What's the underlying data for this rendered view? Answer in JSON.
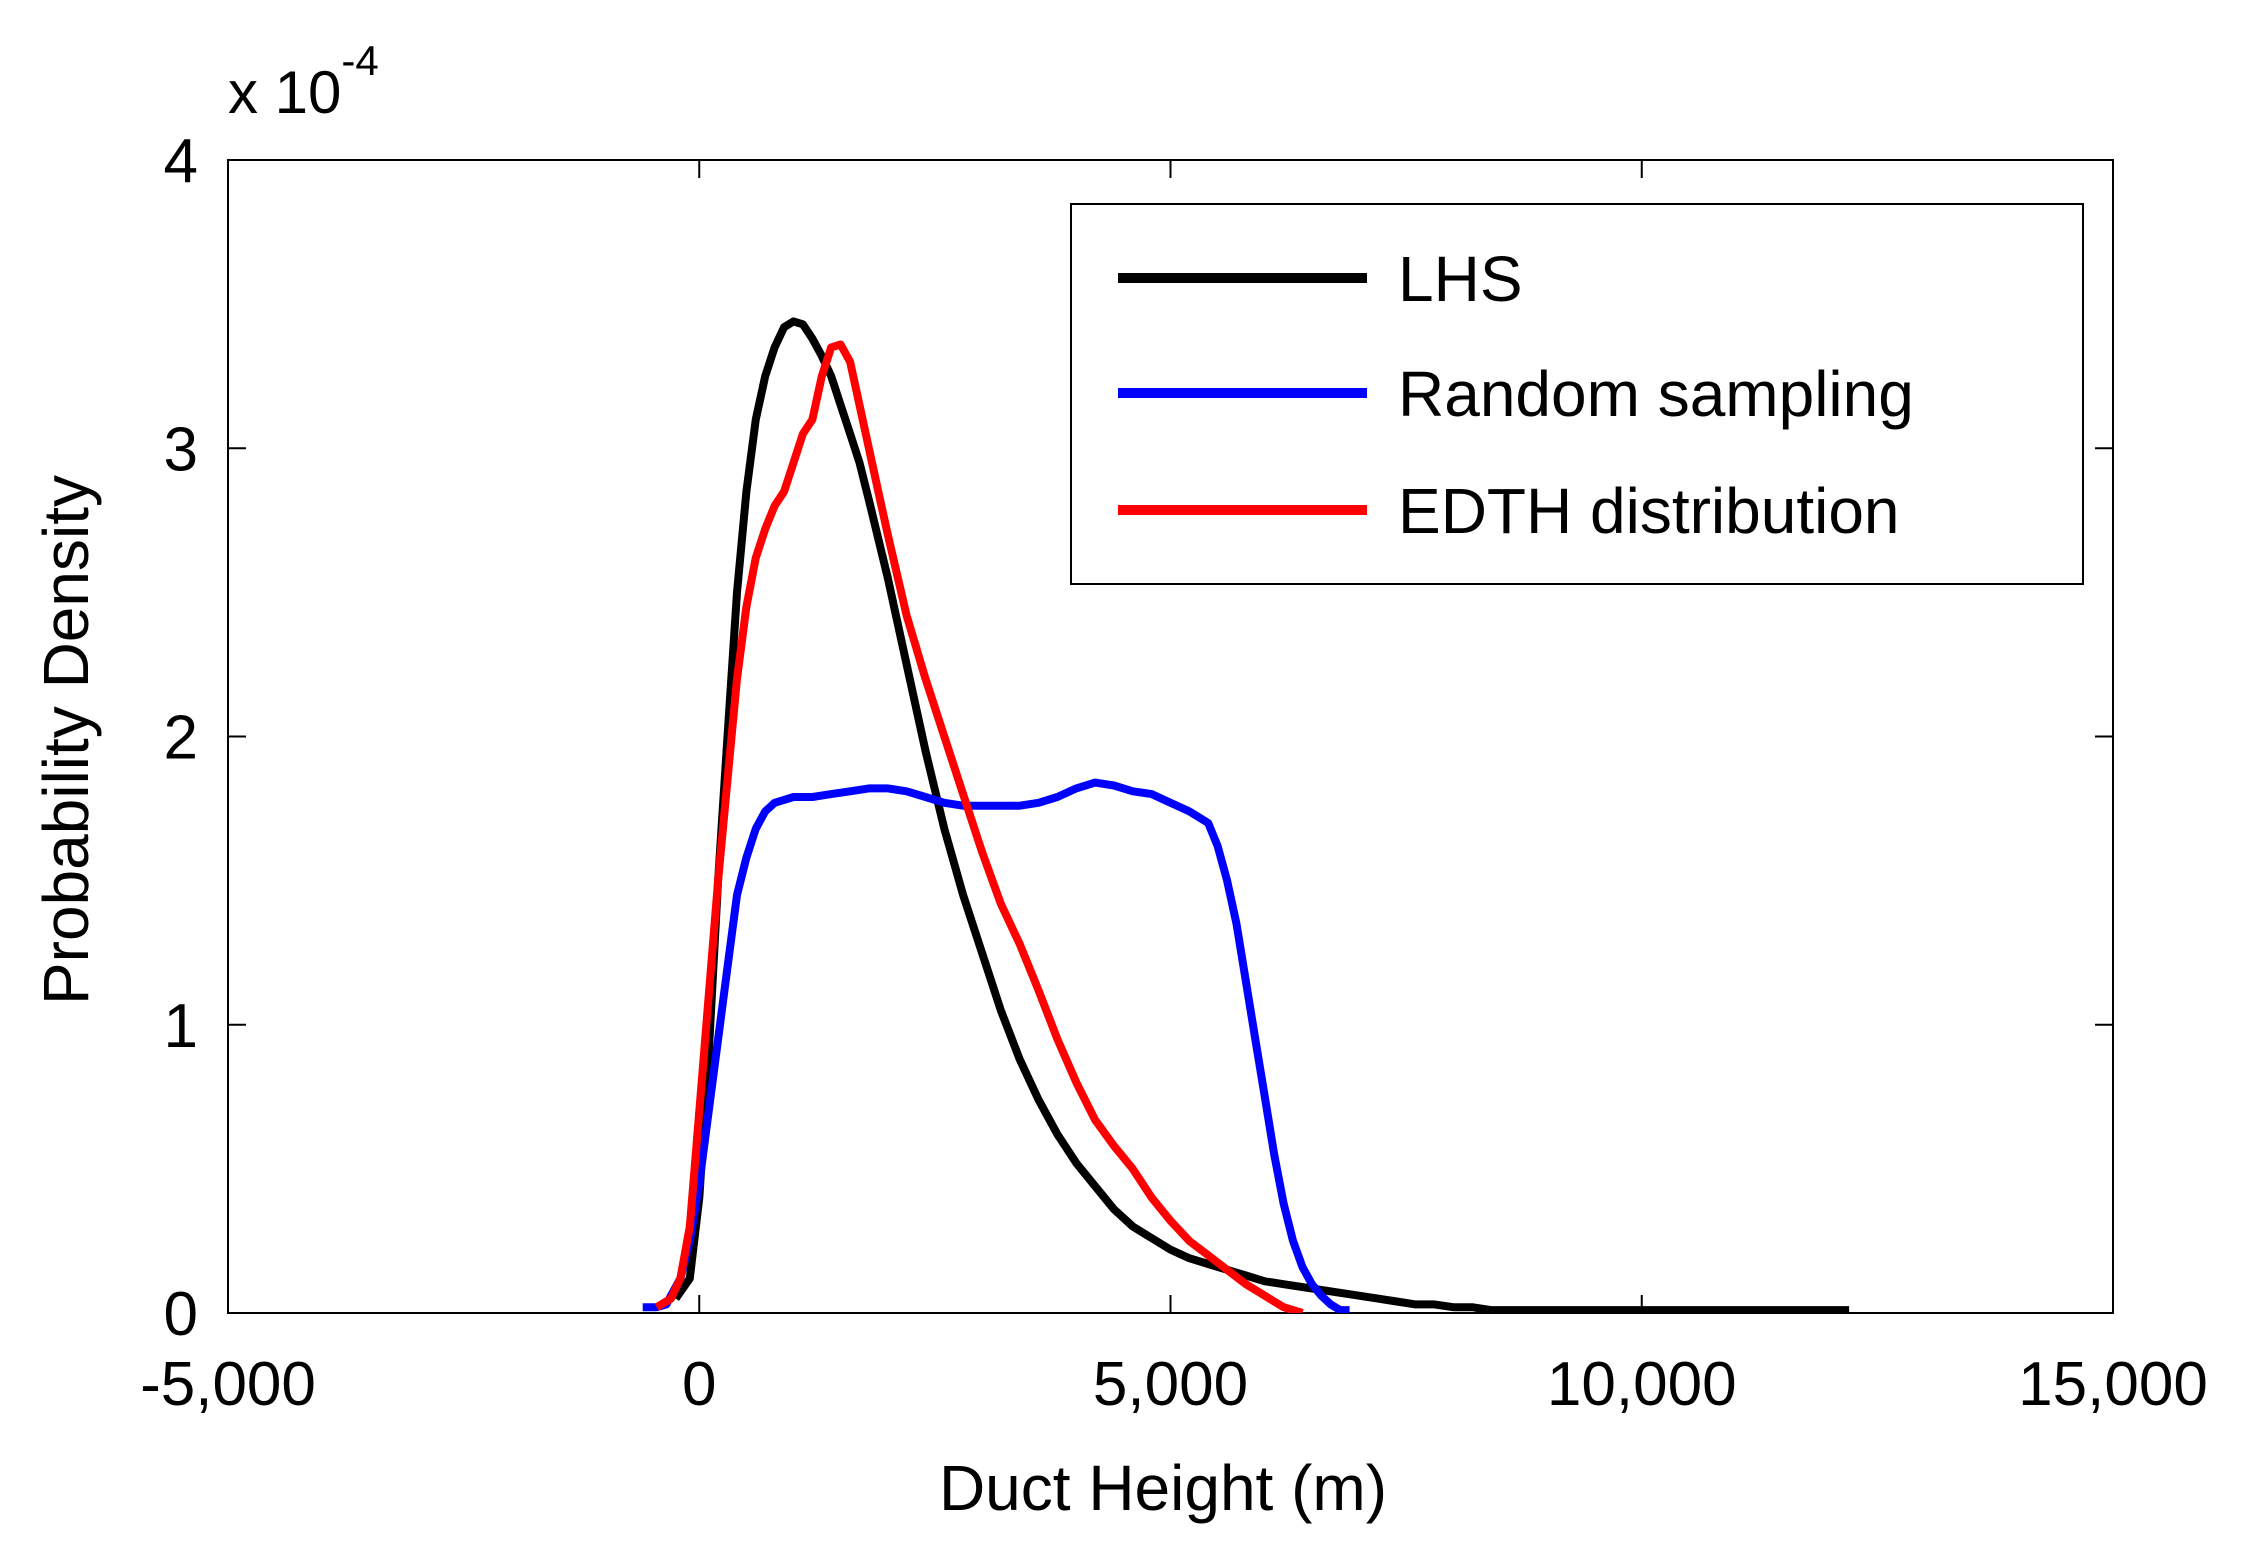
{
  "chart_data": {
    "type": "line",
    "title": "",
    "xlabel": "Duct Height (m)",
    "ylabel": "Probability Density",
    "xlim": [
      -5000,
      15000
    ],
    "ylim": [
      0,
      4
    ],
    "y_scale_label": "x 10",
    "y_scale_exponent": "-4",
    "xticks": [
      -5000,
      0,
      5000,
      10000,
      15000
    ],
    "xtick_labels": [
      "-5,000",
      "0",
      "5,000",
      "10,000",
      "15,000"
    ],
    "yticks": [
      0,
      1,
      2,
      3,
      4
    ],
    "ytick_labels": [
      "0",
      "1",
      "2",
      "3",
      "4"
    ],
    "grid": false,
    "legend_position": "top-right",
    "series": [
      {
        "name": "LHS",
        "color": "#000000",
        "x": [
          -250,
          -100,
          0,
          100,
          200,
          300,
          400,
          500,
          600,
          700,
          800,
          900,
          1000,
          1100,
          1200,
          1300,
          1400,
          1500,
          1600,
          1700,
          1800,
          2000,
          2200,
          2400,
          2600,
          2800,
          3000,
          3200,
          3400,
          3600,
          3800,
          4000,
          4200,
          4400,
          4600,
          4800,
          5000,
          5200,
          5400,
          5600,
          5800,
          6000,
          6200,
          6400,
          6600,
          6800,
          7000,
          7200,
          7400,
          7600,
          7800,
          8000,
          8200,
          8400,
          8600,
          9000,
          10000,
          11000,
          12200
        ],
        "y": [
          0.05,
          0.12,
          0.4,
          0.9,
          1.5,
          2.0,
          2.5,
          2.85,
          3.1,
          3.25,
          3.35,
          3.42,
          3.44,
          3.43,
          3.38,
          3.32,
          3.25,
          3.15,
          3.05,
          2.95,
          2.82,
          2.55,
          2.25,
          1.95,
          1.68,
          1.45,
          1.25,
          1.05,
          0.88,
          0.74,
          0.62,
          0.52,
          0.44,
          0.36,
          0.3,
          0.26,
          0.22,
          0.19,
          0.17,
          0.15,
          0.13,
          0.11,
          0.1,
          0.09,
          0.08,
          0.07,
          0.06,
          0.05,
          0.04,
          0.03,
          0.03,
          0.02,
          0.02,
          0.01,
          0.01,
          0.01,
          0.01,
          0.01,
          0.01
        ]
      },
      {
        "name": "Random sampling",
        "color": "#0000ff",
        "x": [
          -600,
          -450,
          -350,
          -300,
          -200,
          -100,
          0,
          100,
          200,
          300,
          400,
          500,
          600,
          700,
          800,
          900,
          1000,
          1200,
          1400,
          1600,
          1800,
          2000,
          2200,
          2400,
          2600,
          2800,
          3000,
          3200,
          3400,
          3600,
          3800,
          4000,
          4200,
          4400,
          4600,
          4800,
          5000,
          5200,
          5400,
          5500,
          5600,
          5700,
          5800,
          5900,
          6000,
          6100,
          6200,
          6300,
          6400,
          6500,
          6600,
          6700,
          6800,
          6900
        ],
        "y": [
          0.02,
          0.02,
          0.03,
          0.06,
          0.12,
          0.25,
          0.45,
          0.7,
          0.95,
          1.2,
          1.45,
          1.58,
          1.68,
          1.74,
          1.77,
          1.78,
          1.79,
          1.79,
          1.8,
          1.81,
          1.82,
          1.82,
          1.81,
          1.79,
          1.77,
          1.76,
          1.76,
          1.76,
          1.76,
          1.77,
          1.79,
          1.82,
          1.84,
          1.83,
          1.81,
          1.8,
          1.77,
          1.74,
          1.7,
          1.62,
          1.5,
          1.35,
          1.15,
          0.95,
          0.75,
          0.55,
          0.38,
          0.25,
          0.16,
          0.1,
          0.06,
          0.03,
          0.01,
          0.01
        ]
      },
      {
        "name": "EDTH distribution",
        "color": "#ff0000",
        "x": [
          -450,
          -300,
          -200,
          -100,
          0,
          100,
          200,
          300,
          400,
          500,
          600,
          700,
          800,
          900,
          1000,
          1100,
          1200,
          1300,
          1400,
          1500,
          1600,
          1700,
          1800,
          1900,
          2000,
          2200,
          2400,
          2600,
          2800,
          3000,
          3200,
          3400,
          3600,
          3800,
          4000,
          4200,
          4400,
          4600,
          4800,
          5000,
          5200,
          5400,
          5600,
          5800,
          6000,
          6100,
          6200,
          6300,
          6400
        ],
        "y": [
          0.02,
          0.05,
          0.12,
          0.3,
          0.7,
          1.1,
          1.5,
          1.85,
          2.2,
          2.45,
          2.62,
          2.72,
          2.8,
          2.85,
          2.95,
          3.05,
          3.1,
          3.25,
          3.35,
          3.36,
          3.3,
          3.15,
          3.0,
          2.85,
          2.7,
          2.42,
          2.2,
          2.0,
          1.8,
          1.6,
          1.42,
          1.28,
          1.12,
          0.95,
          0.8,
          0.67,
          0.58,
          0.5,
          0.4,
          0.32,
          0.25,
          0.2,
          0.15,
          0.1,
          0.06,
          0.04,
          0.02,
          0.01,
          0.0
        ]
      }
    ]
  }
}
